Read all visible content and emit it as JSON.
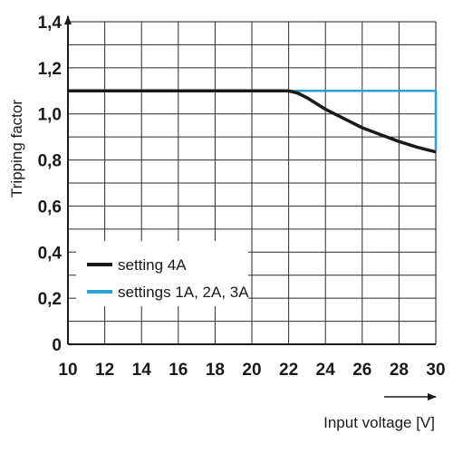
{
  "chart_data": {
    "type": "line",
    "title": "",
    "xlabel": "Input voltage [V]",
    "ylabel": "Tripping factor",
    "xlim": [
      10,
      30
    ],
    "ylim": [
      0,
      1.4
    ],
    "x_ticks": [
      "10",
      "12",
      "14",
      "16",
      "18",
      "20",
      "22",
      "24",
      "26",
      "28",
      "30"
    ],
    "y_ticks": [
      "0",
      "0,2",
      "0,4",
      "0,6",
      "0,8",
      "1,0",
      "1,2",
      "1,4"
    ],
    "grid": true,
    "legend_position": "bottom-left",
    "series": [
      {
        "name": "setting 4A",
        "color": "#1a1a1a",
        "x": [
          10,
          22,
          22.5,
          23,
          24,
          25,
          26,
          27,
          28,
          29,
          30
        ],
        "y": [
          1.1,
          1.1,
          1.09,
          1.07,
          1.02,
          0.98,
          0.94,
          0.91,
          0.88,
          0.855,
          0.835
        ]
      },
      {
        "name": "settings 1A, 2A, 3A",
        "color": "#2aa3d4",
        "x": [
          22,
          30,
          30
        ],
        "y": [
          1.1,
          1.1,
          0.84
        ]
      }
    ]
  }
}
